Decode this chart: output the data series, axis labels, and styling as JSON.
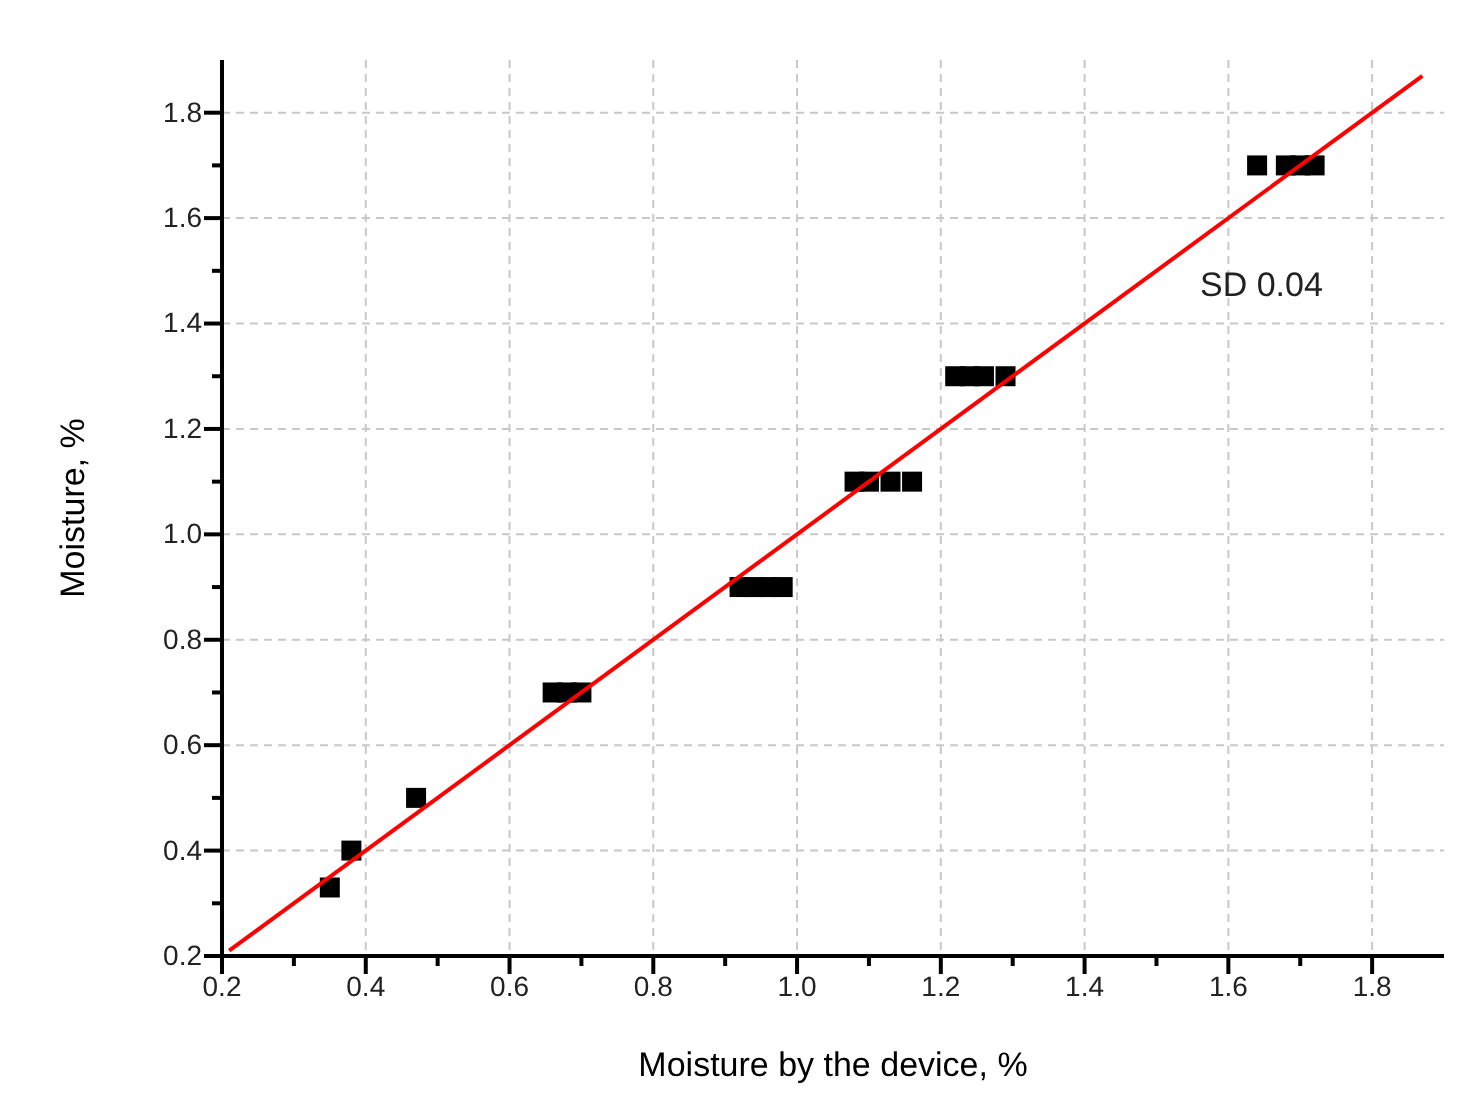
{
  "chart_data": {
    "type": "scatter",
    "xlabel": "Moisture by the device, %",
    "ylabel": "Moisture, %",
    "xlim": [
      0.2,
      1.9
    ],
    "ylim": [
      0.2,
      1.9
    ],
    "xticks": [
      0.2,
      {
        "value": 0.3,
        "label": null
      },
      0.4,
      {
        "value": 0.5,
        "label": null
      },
      0.6,
      {
        "value": 0.7,
        "label": null
      },
      0.8,
      {
        "value": 0.9,
        "label": null
      },
      {
        "value": 1.0,
        "label": "1.0"
      },
      {
        "value": 1.1,
        "label": null
      },
      1.2,
      {
        "value": 1.3,
        "label": null
      },
      1.4,
      {
        "value": 1.5,
        "label": null
      },
      1.6,
      {
        "value": 1.7,
        "label": null
      },
      1.8
    ],
    "yticks": [
      0.2,
      {
        "value": 0.3,
        "label": null
      },
      0.4,
      {
        "value": 0.5,
        "label": null
      },
      0.6,
      {
        "value": 0.7,
        "label": null
      },
      0.8,
      {
        "value": 0.9,
        "label": null
      },
      {
        "value": 1.0,
        "label": "1.0"
      },
      {
        "value": 1.1,
        "label": null
      },
      1.2,
      {
        "value": 1.3,
        "label": null
      },
      1.4,
      {
        "value": 1.5,
        "label": null
      },
      1.6,
      {
        "value": 1.7,
        "label": null
      },
      1.8
    ],
    "grid": true,
    "marker": "square",
    "annotations": [
      "SD 0.04"
    ],
    "series": [
      {
        "color": "#000000",
        "x": [
          0.35,
          0.38,
          0.47,
          0.66,
          0.68,
          0.7,
          0.92,
          0.94,
          0.96,
          0.98,
          1.08,
          1.1,
          1.13,
          1.16,
          1.22,
          1.24,
          1.26,
          1.29,
          1.64,
          1.68,
          1.7,
          1.72
        ],
        "values": [
          0.33,
          0.4,
          0.5,
          0.7,
          0.7,
          0.7,
          0.9,
          0.9,
          0.9,
          0.9,
          1.1,
          1.1,
          1.1,
          1.1,
          1.3,
          1.3,
          1.3,
          1.3,
          1.7,
          1.7,
          1.7,
          1.7
        ]
      },
      {
        "type": "line",
        "color": "#ff0000",
        "line_style": "solid",
        "marker": "none",
        "x": [
          0.21,
          1.87
        ],
        "values": [
          0.21,
          1.87
        ]
      }
    ]
  }
}
